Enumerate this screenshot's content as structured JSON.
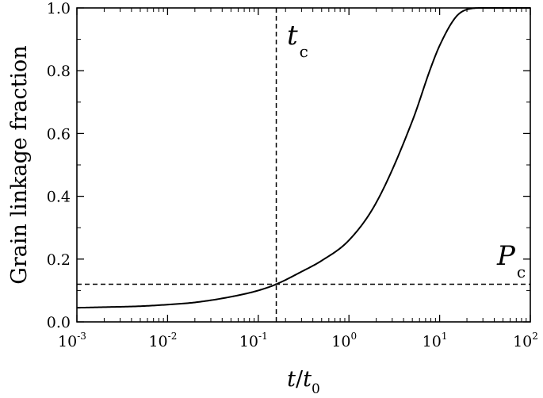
{
  "chart_data": {
    "type": "line",
    "title": "",
    "xlabel": {
      "main": "t",
      "slash": "/",
      "denom": "t",
      "sub": "0"
    },
    "ylabel": "Grain linkage fraction",
    "xscale": "log",
    "xlim": [
      0.001,
      100
    ],
    "ylim": [
      0,
      1.0
    ],
    "x_ticks": [
      {
        "base": "10",
        "exp": "-3"
      },
      {
        "base": "10",
        "exp": "-2"
      },
      {
        "base": "10",
        "exp": "-1"
      },
      {
        "base": "10",
        "exp": "0"
      },
      {
        "base": "10",
        "exp": "1"
      },
      {
        "base": "10",
        "exp": "2"
      }
    ],
    "y_ticks": [
      "0.0",
      "0.2",
      "0.4",
      "0.6",
      "0.8",
      "1.0"
    ],
    "series": [
      {
        "color": "#000000",
        "x": [
          0.001,
          0.002,
          0.005,
          0.01,
          0.02,
          0.05,
          0.1,
          0.158,
          0.3,
          0.5,
          1,
          2,
          5,
          8,
          10,
          15,
          20,
          30,
          100
        ],
        "y": [
          0.045,
          0.047,
          0.05,
          0.055,
          0.062,
          0.08,
          0.1,
          0.12,
          0.16,
          0.195,
          0.26,
          0.38,
          0.64,
          0.81,
          0.88,
          0.97,
          0.995,
          1.0,
          1.0
        ]
      }
    ],
    "reference_lines": {
      "vertical": {
        "x": 0.158,
        "label_main": "t",
        "label_sub": "c"
      },
      "horizontal": {
        "y": 0.12,
        "label_main": "P",
        "label_sub": "c"
      }
    }
  }
}
